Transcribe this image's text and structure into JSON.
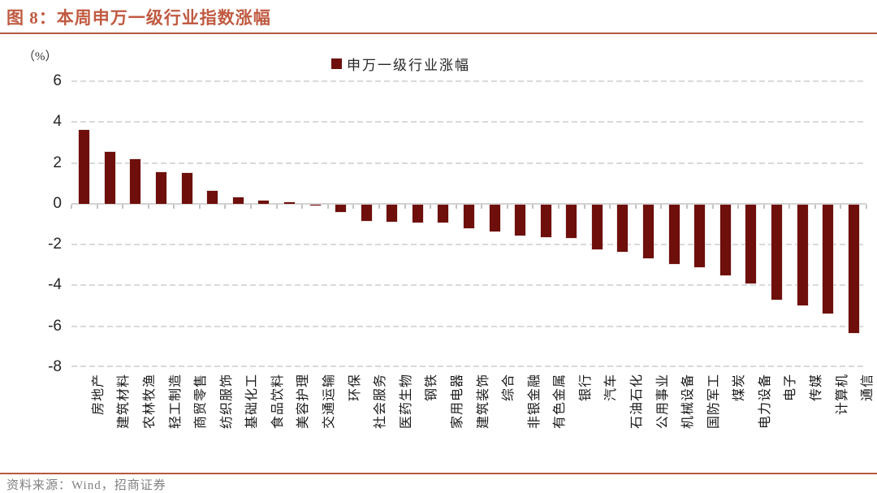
{
  "header": {
    "title": "图 8：本周申万一级行业指数涨幅"
  },
  "chart_data": {
    "type": "bar",
    "title": "本周申万一级行业指数涨幅",
    "unit_label": "（%）",
    "legend": "申万一级行业涨幅",
    "legend_position": "top-center",
    "grid": "horizontal-dashed",
    "ylim": [
      -8,
      6
    ],
    "yticks": [
      6,
      4,
      2,
      0,
      -2,
      -4,
      -6,
      -8
    ],
    "categories": [
      "房地产",
      "建筑材料",
      "农林牧渔",
      "轻工制造",
      "商贸零售",
      "纺织服饰",
      "基础化工",
      "食品饮料",
      "美容护理",
      "交通运输",
      "环保",
      "社会服务",
      "医药生物",
      "钢铁",
      "家用电器",
      "建筑装饰",
      "综合",
      "非银金融",
      "有色金属",
      "银行",
      "汽车",
      "石油石化",
      "公用事业",
      "机械设备",
      "国防军工",
      "煤炭",
      "电力设备",
      "电子",
      "传媒",
      "计算机",
      "通信"
    ],
    "values": [
      3.6,
      2.55,
      2.2,
      1.55,
      1.5,
      0.65,
      0.3,
      0.15,
      0.08,
      -0.03,
      -0.35,
      -0.8,
      -0.85,
      -0.87,
      -0.88,
      -1.15,
      -1.3,
      -1.5,
      -1.6,
      -1.65,
      -2.2,
      -2.3,
      -2.65,
      -2.9,
      -3.05,
      -3.45,
      -3.85,
      -4.65,
      -4.95,
      -5.35,
      -6.3
    ]
  },
  "footer": {
    "source": "资料来源：Wind，招商证券"
  },
  "colors": {
    "accent": "#b55a42",
    "title_text": "#c05a41",
    "bar": "#6e0f0c",
    "grid": "#d9d9d9",
    "zero_line": "#d2d2d2",
    "axis_text": "#262626",
    "source_text": "#808080"
  }
}
